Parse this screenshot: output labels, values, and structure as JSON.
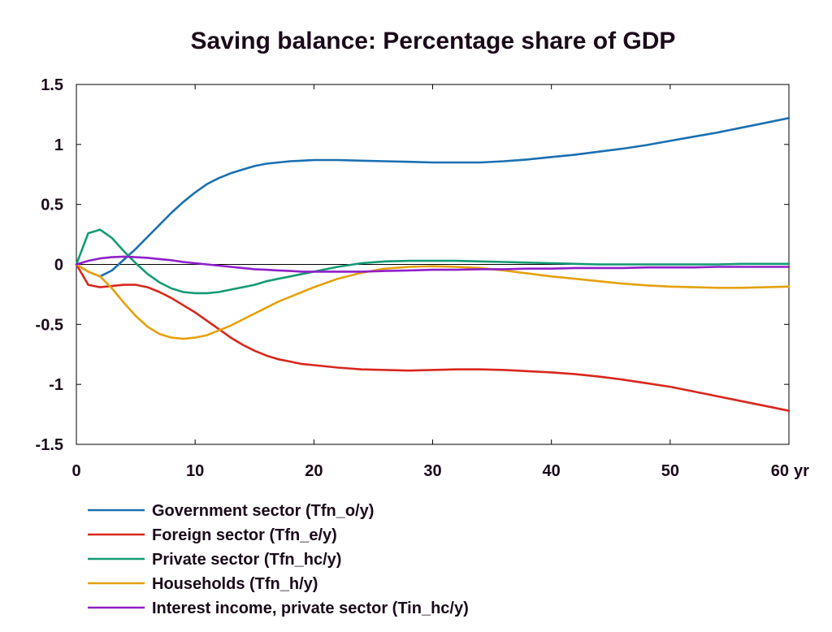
{
  "chart_data": {
    "type": "line",
    "title": "Saving balance: Percentage share of GDP",
    "xlabel": "",
    "ylabel": "",
    "x_unit_label": "yr",
    "xlim": [
      0,
      60
    ],
    "ylim": [
      -1.5,
      1.5
    ],
    "xticks": [
      0,
      10,
      20,
      30,
      40,
      50,
      60
    ],
    "yticks": [
      -1.5,
      -1,
      -0.5,
      0,
      0.5,
      1,
      1.5
    ],
    "xtick_labels": [
      "0",
      "10",
      "20",
      "30",
      "40",
      "50",
      "60"
    ],
    "ytick_labels": [
      "-1.5",
      "-1",
      "-0.5",
      "0",
      "0.5",
      "1",
      "1.5"
    ],
    "zero_line": true,
    "grid": false,
    "legend_position": "bottom",
    "series": [
      {
        "name": "Government sector (Tfn_o/y)",
        "color": "#1a6fb0",
        "x": [
          0,
          1,
          2,
          3,
          4,
          5,
          6,
          7,
          8,
          9,
          10,
          11,
          12,
          13,
          14,
          15,
          16,
          17,
          18,
          19,
          20,
          22,
          24,
          26,
          28,
          30,
          32,
          34,
          36,
          38,
          40,
          42,
          44,
          46,
          48,
          50,
          52,
          54,
          56,
          58,
          60
        ],
        "y": [
          0,
          -0.06,
          -0.1,
          -0.05,
          0.04,
          0.13,
          0.23,
          0.33,
          0.43,
          0.52,
          0.6,
          0.67,
          0.72,
          0.76,
          0.79,
          0.82,
          0.84,
          0.85,
          0.86,
          0.865,
          0.87,
          0.87,
          0.865,
          0.86,
          0.855,
          0.85,
          0.85,
          0.85,
          0.86,
          0.875,
          0.895,
          0.915,
          0.94,
          0.965,
          0.995,
          1.03,
          1.065,
          1.1,
          1.14,
          1.18,
          1.22
        ]
      },
      {
        "name": "Foreign sector (Tfn_e/y)",
        "color": "#d9261c",
        "x": [
          0,
          1,
          2,
          3,
          4,
          5,
          6,
          7,
          8,
          9,
          10,
          11,
          12,
          13,
          14,
          15,
          16,
          17,
          18,
          19,
          20,
          22,
          24,
          26,
          28,
          30,
          32,
          34,
          36,
          38,
          40,
          42,
          44,
          46,
          48,
          50,
          52,
          54,
          56,
          58,
          60
        ],
        "y": [
          0,
          -0.17,
          -0.19,
          -0.18,
          -0.17,
          -0.17,
          -0.19,
          -0.23,
          -0.28,
          -0.34,
          -0.4,
          -0.47,
          -0.54,
          -0.61,
          -0.67,
          -0.72,
          -0.76,
          -0.79,
          -0.81,
          -0.83,
          -0.84,
          -0.86,
          -0.875,
          -0.88,
          -0.885,
          -0.88,
          -0.875,
          -0.875,
          -0.88,
          -0.89,
          -0.9,
          -0.915,
          -0.935,
          -0.96,
          -0.99,
          -1.02,
          -1.06,
          -1.1,
          -1.14,
          -1.18,
          -1.22
        ]
      },
      {
        "name": "Private sector (Tfn_hc/y)",
        "color": "#139a74",
        "x": [
          0,
          1,
          2,
          3,
          4,
          5,
          6,
          7,
          8,
          9,
          10,
          11,
          12,
          13,
          14,
          15,
          16,
          17,
          18,
          19,
          20,
          22,
          24,
          26,
          28,
          30,
          32,
          34,
          36,
          38,
          40,
          42,
          44,
          46,
          48,
          50,
          52,
          54,
          56,
          58,
          60
        ],
        "y": [
          0,
          0.26,
          0.29,
          0.22,
          0.11,
          0.01,
          -0.08,
          -0.15,
          -0.2,
          -0.23,
          -0.24,
          -0.24,
          -0.23,
          -0.21,
          -0.19,
          -0.17,
          -0.14,
          -0.12,
          -0.1,
          -0.08,
          -0.06,
          -0.02,
          0.01,
          0.025,
          0.03,
          0.03,
          0.03,
          0.025,
          0.02,
          0.015,
          0.01,
          0.005,
          0,
          0,
          0,
          0,
          0,
          0,
          0.005,
          0.005,
          0.005
        ]
      },
      {
        "name": "Households (Tfn_h/y)",
        "color": "#e5a10c",
        "x": [
          0,
          1,
          2,
          3,
          4,
          5,
          6,
          7,
          8,
          9,
          10,
          11,
          12,
          13,
          14,
          15,
          16,
          17,
          18,
          19,
          20,
          22,
          24,
          26,
          28,
          30,
          32,
          34,
          36,
          38,
          40,
          42,
          44,
          46,
          48,
          50,
          52,
          54,
          56,
          58,
          60
        ],
        "y": [
          0,
          -0.06,
          -0.1,
          -0.2,
          -0.32,
          -0.43,
          -0.52,
          -0.58,
          -0.61,
          -0.62,
          -0.61,
          -0.59,
          -0.55,
          -0.51,
          -0.46,
          -0.41,
          -0.36,
          -0.31,
          -0.27,
          -0.23,
          -0.19,
          -0.12,
          -0.07,
          -0.035,
          -0.02,
          -0.015,
          -0.02,
          -0.03,
          -0.05,
          -0.075,
          -0.1,
          -0.12,
          -0.14,
          -0.16,
          -0.175,
          -0.185,
          -0.19,
          -0.195,
          -0.195,
          -0.19,
          -0.185
        ]
      },
      {
        "name": "Interest income, private sector (Tin_hc/y)",
        "color": "#8f1fc9",
        "x": [
          0,
          1,
          2,
          3,
          4,
          5,
          6,
          7,
          8,
          9,
          10,
          11,
          12,
          13,
          14,
          15,
          16,
          17,
          18,
          19,
          20,
          22,
          24,
          26,
          28,
          30,
          32,
          34,
          36,
          38,
          40,
          42,
          44,
          46,
          48,
          50,
          52,
          54,
          56,
          58,
          60
        ],
        "y": [
          0,
          0.03,
          0.05,
          0.06,
          0.065,
          0.06,
          0.055,
          0.045,
          0.035,
          0.02,
          0.01,
          0,
          -0.01,
          -0.02,
          -0.03,
          -0.04,
          -0.045,
          -0.05,
          -0.055,
          -0.06,
          -0.06,
          -0.06,
          -0.06,
          -0.055,
          -0.05,
          -0.045,
          -0.045,
          -0.04,
          -0.04,
          -0.035,
          -0.035,
          -0.03,
          -0.03,
          -0.03,
          -0.025,
          -0.025,
          -0.025,
          -0.02,
          -0.02,
          -0.02,
          -0.02
        ]
      }
    ]
  }
}
